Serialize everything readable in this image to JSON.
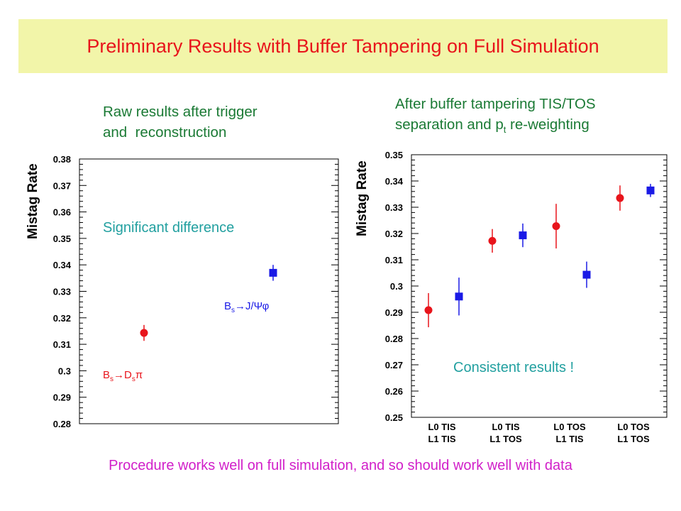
{
  "header": {
    "title": "Preliminary Results with Buffer Tampering on Full Simulation"
  },
  "left_caption": {
    "line1": "Raw results after trigger",
    "line2": "and  reconstruction"
  },
  "right_caption": {
    "line1": "After buffer tampering TIS/TOS",
    "line2_pre": "separation and p",
    "line2_sub": "t",
    "line2_post": " re-weighting"
  },
  "left_note": "Significant difference",
  "right_note": "Consistent results !",
  "footer": "Procedure works well on full simulation, and so should work well with data",
  "colors": {
    "red": "#e8141b",
    "blue": "#1a1ae6",
    "banner": "#f2f5a9",
    "green": "#1b7a35",
    "teal": "#22a0a0",
    "magenta": "#d11fc9"
  },
  "chart_data": [
    {
      "type": "scatter",
      "ylabel": "Mistag Rate",
      "ylim": [
        0.28,
        0.38
      ],
      "yticks": [
        "0.28",
        "0.29",
        "0.3",
        "0.31",
        "0.32",
        "0.33",
        "0.34",
        "0.35",
        "0.36",
        "0.37",
        "0.38"
      ],
      "grid": false,
      "series": [
        {
          "name": "Bs→Dsπ",
          "color": "#e8141b",
          "marker": "circle",
          "points": [
            {
              "x": 0.25,
              "y": 0.3143,
              "err": 0.003
            }
          ],
          "label": {
            "B": "B",
            "s": "s",
            "arrow": "→D",
            "s2": "s",
            "end": "π"
          }
        },
        {
          "name": "Bs→J/Ψφ",
          "color": "#1a1ae6",
          "marker": "square",
          "points": [
            {
              "x": 0.75,
              "y": 0.337,
              "err": 0.003
            }
          ],
          "label": {
            "B": "B",
            "s": "s",
            "arrow": "→J/Ψφ"
          }
        }
      ]
    },
    {
      "type": "scatter",
      "ylabel": "Mistag Rate",
      "ylim": [
        0.25,
        0.35
      ],
      "yticks": [
        "0.25",
        "0.26",
        "0.27",
        "0.28",
        "0.29",
        "0.3",
        "0.31",
        "0.32",
        "0.33",
        "0.34",
        "0.35"
      ],
      "grid": false,
      "categories": [
        {
          "line1": "L0 TIS",
          "line2": "L1 TIS"
        },
        {
          "line1": "L0 TIS",
          "line2": "L1 TOS"
        },
        {
          "line1": "L0 TOS",
          "line2": "L1 TIS"
        },
        {
          "line1": "L0 TOS",
          "line2": "L1 TOS"
        }
      ],
      "series": [
        {
          "color": "#e8141b",
          "marker": "circle",
          "values": [
            0.2908,
            0.3172,
            0.3228,
            0.3335
          ],
          "errors": [
            0.0065,
            0.0045,
            0.0085,
            0.0048
          ]
        },
        {
          "color": "#1a1ae6",
          "marker": "square",
          "values": [
            0.296,
            0.3193,
            0.3043,
            0.3364
          ],
          "errors": [
            0.0072,
            0.0045,
            0.005,
            0.0025
          ]
        }
      ]
    }
  ]
}
